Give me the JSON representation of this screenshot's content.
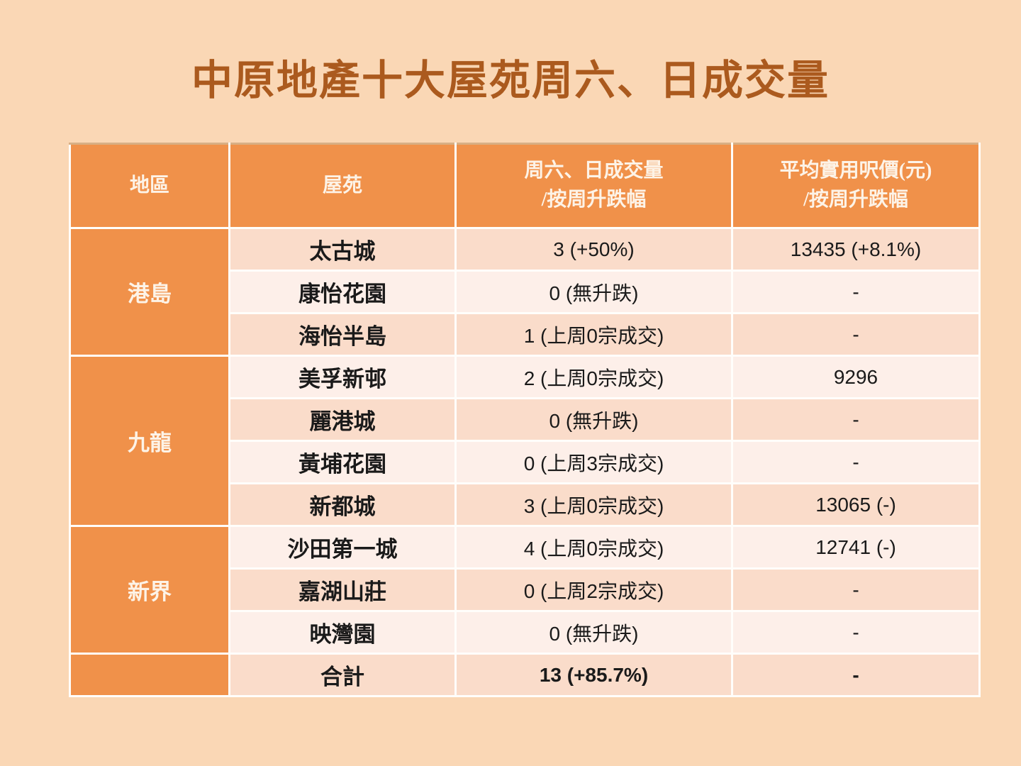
{
  "title": "中原地產十大屋苑周六、日成交量",
  "colors": {
    "page_background": "#FAD7B5",
    "header_background": "#F0914A",
    "header_text": "#FDF3E7",
    "band_dark": "#FADCCA",
    "band_light": "#FDEFE9",
    "gridline": "#FFFEFB",
    "table_top_border": "#D8AF84",
    "title_text": "#AB5A1E",
    "cell_text": "#1A1A1A"
  },
  "table": {
    "columns": [
      {
        "line1": "地區"
      },
      {
        "line1": "屋苑"
      },
      {
        "line1": "周六、日成交量",
        "line2": "/按周升跌幅"
      },
      {
        "line1": "平均實用呎價(元)",
        "line2": "/按周升跌幅"
      }
    ],
    "groups": [
      {
        "district": "港島",
        "rows": [
          {
            "estate": "太古城",
            "volume": "3 (+50%)",
            "price": "13435 (+8.1%)"
          },
          {
            "estate": "康怡花園",
            "volume": "0 (無升跌)",
            "price": "-"
          },
          {
            "estate": "海怡半島",
            "volume": "1 (上周0宗成交)",
            "price": "-"
          }
        ]
      },
      {
        "district": "九龍",
        "rows": [
          {
            "estate": "美孚新邨",
            "volume": "2 (上周0宗成交)",
            "price": "9296"
          },
          {
            "estate": "麗港城",
            "volume": "0 (無升跌)",
            "price": "-"
          },
          {
            "estate": "黃埔花園",
            "volume": "0 (上周3宗成交)",
            "price": "-"
          },
          {
            "estate": "新都城",
            "volume": "3 (上周0宗成交)",
            "price": "13065 (-)"
          }
        ]
      },
      {
        "district": "新界",
        "rows": [
          {
            "estate": "沙田第一城",
            "volume": "4 (上周0宗成交)",
            "price": "12741 (-)"
          },
          {
            "estate": "嘉湖山莊",
            "volume": "0 (上周2宗成交)",
            "price": "-"
          },
          {
            "estate": "映灣園",
            "volume": "0 (無升跌)",
            "price": "-"
          }
        ]
      }
    ],
    "total": {
      "estate": "合計",
      "volume": "13 (+85.7%)",
      "price": "-"
    }
  }
}
